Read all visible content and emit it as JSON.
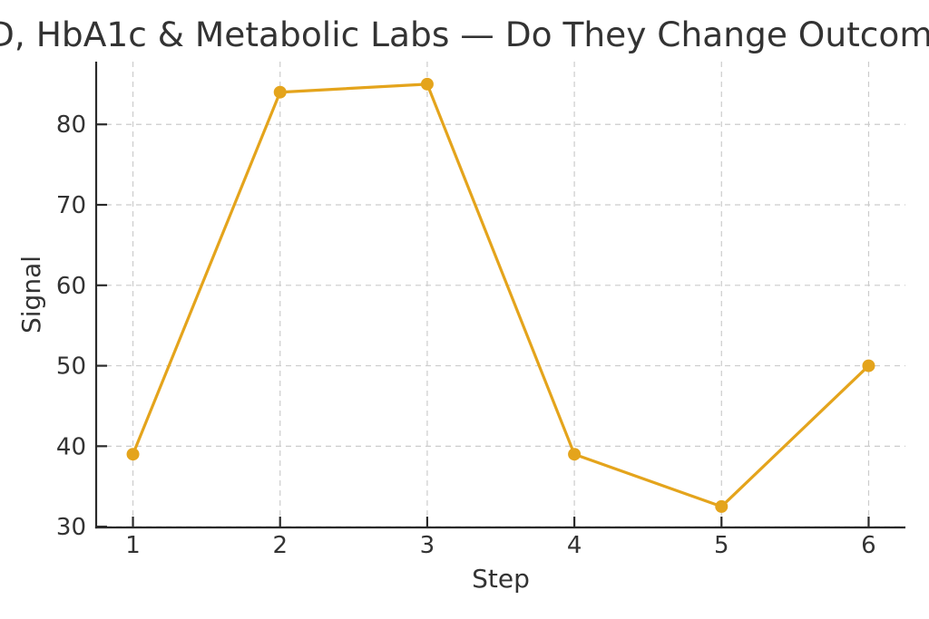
{
  "chart_data": {
    "type": "line",
    "title": "D, HbA1c & Metabolic Labs — Do They Change Outcom",
    "xlabel": "Step",
    "ylabel": "Signal",
    "x": [
      1,
      2,
      3,
      4,
      5,
      6
    ],
    "values": [
      39,
      84,
      85,
      39,
      32.5,
      50
    ],
    "xticks": [
      "1",
      "2",
      "3",
      "4",
      "5",
      "6"
    ],
    "yticks": [
      "30",
      "40",
      "50",
      "60",
      "70",
      "80"
    ],
    "ytick_values": [
      30,
      40,
      50,
      60,
      70,
      80
    ],
    "xlim": [
      0.75,
      6.25
    ],
    "ylim": [
      29.9,
      87.8
    ],
    "grid": true,
    "legend_position": "none",
    "line_color": "#E4A41C",
    "marker": "circle",
    "marker_color": "#E4A41C",
    "grid_color": "#cccccc",
    "axis_color": "#2a2a2a",
    "text_color": "#333333"
  }
}
